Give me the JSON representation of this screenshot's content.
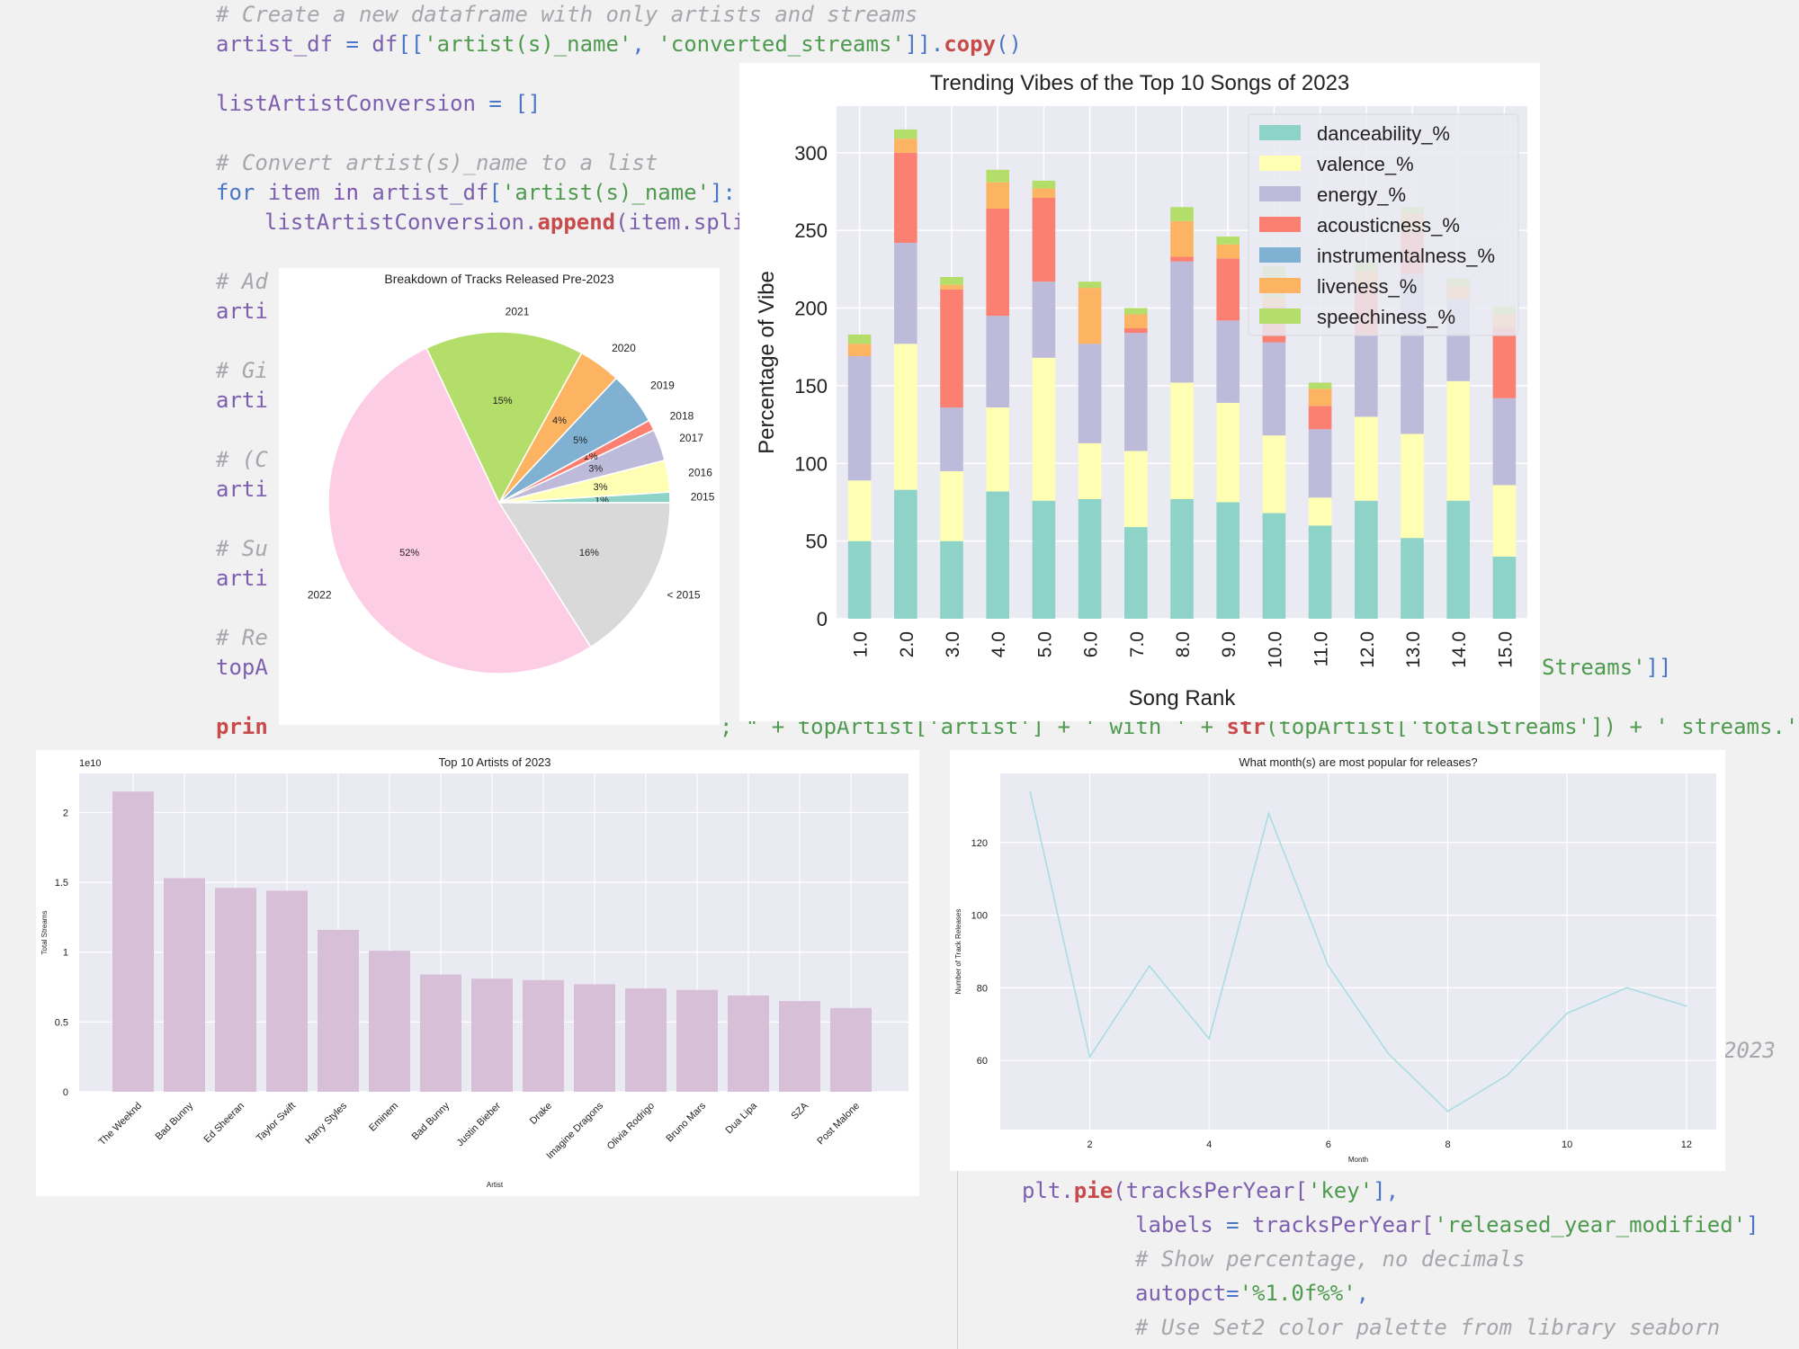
{
  "code": {
    "lines": [
      {
        "x": 240,
        "y": 24,
        "parts": [
          {
            "t": "# Create a new dataframe with only artists and streams",
            "c": "cm"
          }
        ]
      },
      {
        "x": 240,
        "y": 57,
        "parts": [
          {
            "t": "artist_df",
            "c": "vr"
          },
          {
            "t": " = ",
            "c": "op"
          },
          {
            "t": "df",
            "c": "vr"
          },
          {
            "t": "[[",
            "c": "op"
          },
          {
            "t": "'artist(s)_name'",
            "c": "st"
          },
          {
            "t": ", ",
            "c": "op"
          },
          {
            "t": "'converted_streams'",
            "c": "st"
          },
          {
            "t": "]].",
            "c": "op"
          },
          {
            "t": "copy",
            "c": "fn"
          },
          {
            "t": "()",
            "c": "op"
          }
        ]
      },
      {
        "x": 240,
        "y": 123,
        "parts": [
          {
            "t": "listArtistConversion",
            "c": "vr"
          },
          {
            "t": " = []",
            "c": "op"
          }
        ]
      },
      {
        "x": 240,
        "y": 189,
        "parts": [
          {
            "t": "# Convert artist(s)_name to a list",
            "c": "cm"
          }
        ]
      },
      {
        "x": 240,
        "y": 222,
        "parts": [
          {
            "t": "for ",
            "c": "op"
          },
          {
            "t": "item",
            "c": "vr"
          },
          {
            "t": " in ",
            "c": "kw"
          },
          {
            "t": "artist_df",
            "c": "vr"
          },
          {
            "t": "[",
            "c": "op"
          },
          {
            "t": "'artist(s)_name'",
            "c": "st"
          },
          {
            "t": "]:",
            "c": "op"
          }
        ]
      },
      {
        "x": 294,
        "y": 255,
        "parts": [
          {
            "t": "listArtistConversion.",
            "c": "vr"
          },
          {
            "t": "append",
            "c": "fn"
          },
          {
            "t": "(item.split(\"",
            "c": "vr"
          }
        ]
      },
      {
        "x": 240,
        "y": 321,
        "parts": [
          {
            "t": "# Ad",
            "c": "cm"
          }
        ]
      },
      {
        "x": 240,
        "y": 354,
        "parts": [
          {
            "t": "arti",
            "c": "vr"
          }
        ]
      },
      {
        "x": 240,
        "y": 420,
        "parts": [
          {
            "t": "# Gi",
            "c": "cm"
          }
        ]
      },
      {
        "x": 240,
        "y": 453,
        "parts": [
          {
            "t": "arti",
            "c": "vr"
          }
        ]
      },
      {
        "x": 240,
        "y": 519,
        "parts": [
          {
            "t": "# (C",
            "c": "cm"
          }
        ]
      },
      {
        "x": 240,
        "y": 552,
        "parts": [
          {
            "t": "arti",
            "c": "vr"
          }
        ]
      },
      {
        "x": 240,
        "y": 618,
        "parts": [
          {
            "t": "# Su",
            "c": "cm"
          }
        ]
      },
      {
        "x": 240,
        "y": 651,
        "parts": [
          {
            "t": "arti",
            "c": "vr"
          }
        ]
      },
      {
        "x": 240,
        "y": 717,
        "parts": [
          {
            "t": "# Re",
            "c": "cm"
          }
        ]
      },
      {
        "x": 240,
        "y": 750,
        "parts": [
          {
            "t": "topA",
            "c": "vr"
          }
        ]
      },
      {
        "x": 1714,
        "y": 750,
        "parts": [
          {
            "t": "Streams'",
            "c": "st"
          },
          {
            "t": "]]",
            "c": "op"
          }
        ]
      },
      {
        "x": 240,
        "y": 816,
        "parts": [
          {
            "t": "prin",
            "c": "fn"
          }
        ]
      },
      {
        "x": 800,
        "y": 816,
        "parts": [
          {
            "t": "; \" + topArtist['artist'] + ' with ' + ",
            "c": "st"
          },
          {
            "t": "str",
            "c": "fn"
          },
          {
            "t": "(topArtist['totalStreams']) + ' streams.'",
            "c": "st"
          },
          {
            "t": ")",
            "c": "op"
          }
        ]
      },
      {
        "x": 1916,
        "y": 1176,
        "parts": [
          {
            "t": "2023",
            "c": "cm"
          }
        ]
      },
      {
        "x": 1136,
        "y": 1332,
        "parts": [
          {
            "t": "plt.",
            "c": "vr"
          },
          {
            "t": "pie",
            "c": "fn"
          },
          {
            "t": "(tracksPerYear[",
            "c": "vr"
          },
          {
            "t": "'key'",
            "c": "st"
          },
          {
            "t": "],",
            "c": "op"
          }
        ]
      },
      {
        "x": 1262,
        "y": 1370,
        "parts": [
          {
            "t": "labels",
            "c": "vr"
          },
          {
            "t": " = ",
            "c": "op"
          },
          {
            "t": "tracksPerYear[",
            "c": "vr"
          },
          {
            "t": "'released_year_modified'",
            "c": "st"
          },
          {
            "t": "]",
            "c": "op"
          }
        ]
      },
      {
        "x": 1262,
        "y": 1408,
        "parts": [
          {
            "t": "# Show percentage, no decimals",
            "c": "cm"
          }
        ]
      },
      {
        "x": 1262,
        "y": 1446,
        "parts": [
          {
            "t": "autopct",
            "c": "vr"
          },
          {
            "t": "=",
            "c": "op"
          },
          {
            "t": "'%1.0f%%'",
            "c": "st"
          },
          {
            "t": ",",
            "c": "op"
          }
        ]
      },
      {
        "x": 1262,
        "y": 1484,
        "parts": [
          {
            "t": "# Use Set2 color palette from library seaborn",
            "c": "cm"
          }
        ]
      }
    ]
  },
  "chart_data": [
    {
      "id": "pie",
      "type": "pie",
      "title": "Breakdown of Tracks Released Pre-2023",
      "slices": [
        {
          "label": "2015",
          "value": 1,
          "pct": "1%",
          "color": "#8dd3c7"
        },
        {
          "label": "2016",
          "value": 3,
          "pct": "3%",
          "color": "#ffffb3"
        },
        {
          "label": "2017",
          "value": 3,
          "pct": "3%",
          "color": "#bebada"
        },
        {
          "label": "2018",
          "value": 1,
          "pct": "1%",
          "color": "#fb8072"
        },
        {
          "label": "2019",
          "value": 5,
          "pct": "5%",
          "color": "#80b1d3"
        },
        {
          "label": "2020",
          "value": 4,
          "pct": "4%",
          "color": "#fdb462"
        },
        {
          "label": "2021",
          "value": 15,
          "pct": "15%",
          "color": "#b3de69"
        },
        {
          "label": "2022",
          "value": 52,
          "pct": "52%",
          "color": "#fccde5"
        },
        {
          "label": "< 2015",
          "value": 16,
          "pct": "16%",
          "color": "#d9d9d9"
        }
      ]
    },
    {
      "id": "stack",
      "type": "bar",
      "stacked": true,
      "title": "Trending Vibes of the Top 10 Songs of 2023",
      "xlabel": "Song Rank",
      "ylabel": "Percentage of Vibe",
      "categories": [
        "1.0",
        "2.0",
        "3.0",
        "4.0",
        "5.0",
        "6.0",
        "7.0",
        "8.0",
        "9.0",
        "10.0",
        "11.0",
        "12.0",
        "13.0",
        "14.0",
        "15.0"
      ],
      "ylim": [
        0,
        330
      ],
      "yticks": [
        0,
        50,
        100,
        150,
        200,
        250,
        300
      ],
      "legend_position": "upper-right",
      "series": [
        {
          "name": "danceability_%",
          "color": "#8dd3c7",
          "values": [
            50,
            83,
            50,
            82,
            76,
            77,
            59,
            77,
            75,
            68,
            60,
            76,
            52,
            76,
            40
          ]
        },
        {
          "name": "valence_%",
          "color": "#ffffb3",
          "values": [
            39,
            94,
            45,
            54,
            92,
            36,
            49,
            75,
            64,
            50,
            18,
            54,
            67,
            77,
            46
          ]
        },
        {
          "name": "energy_%",
          "color": "#bebada",
          "values": [
            80,
            65,
            41,
            59,
            49,
            64,
            76,
            78,
            53,
            60,
            44,
            53,
            103,
            53,
            56
          ]
        },
        {
          "name": "acousticness_%",
          "color": "#fb8072",
          "values": [
            0,
            58,
            76,
            69,
            54,
            0,
            3,
            3,
            40,
            23,
            15,
            30,
            28,
            0,
            46
          ]
        },
        {
          "name": "instrumentalness_%",
          "color": "#80b1d3",
          "values": [
            0,
            0,
            0,
            0,
            0,
            0,
            0,
            0,
            0,
            0,
            0,
            0,
            0,
            0,
            0
          ]
        },
        {
          "name": "liveness_%",
          "color": "#fdb462",
          "values": [
            8,
            9,
            3,
            17,
            6,
            36,
            9,
            23,
            9,
            6,
            11,
            11,
            11,
            8,
            8
          ]
        },
        {
          "name": "speechiness_%",
          "color": "#b3de69",
          "values": [
            6,
            6,
            5,
            8,
            5,
            4,
            4,
            9,
            5,
            20,
            4,
            5,
            4,
            5,
            5
          ]
        }
      ]
    },
    {
      "id": "artists",
      "type": "bar",
      "title": "Top 10 Artists of 2023",
      "xlabel": "Artist",
      "ylabel": "Total Streams",
      "offset_label": "1e10",
      "categories": [
        "The Weeknd",
        "Bad Bunny",
        "Ed Sheeran",
        "Taylor Swift",
        "Harry Styles",
        "Eminem",
        "Bad Bunny",
        "Justin Bieber",
        "Drake",
        "Imagine Dragons",
        "Olivia Rodrigo",
        "Bruno Mars",
        "Dua Lipa",
        "SZA",
        "Post Malone"
      ],
      "values": [
        2.15,
        1.53,
        1.46,
        1.44,
        1.16,
        1.01,
        0.84,
        0.81,
        0.8,
        0.77,
        0.74,
        0.73,
        0.69,
        0.65,
        0.6
      ],
      "ylim": [
        0,
        2.28
      ],
      "yticks": [
        0.0,
        0.5,
        1.0,
        1.5,
        2.0
      ],
      "color": "#d8bfd8"
    },
    {
      "id": "months",
      "type": "line",
      "title": "What month(s) are most popular for releases?",
      "xlabel": "Month",
      "ylabel": "Number of Track Releases",
      "x": [
        1,
        2,
        3,
        4,
        5,
        6,
        7,
        8,
        9,
        10,
        11,
        12
      ],
      "y": [
        134,
        61,
        86,
        66,
        128,
        86,
        62,
        46,
        56,
        73,
        80,
        75
      ],
      "xlim": [
        0.5,
        12.5
      ],
      "ylim": [
        41,
        139
      ],
      "xticks": [
        2,
        4,
        6,
        8,
        10,
        12
      ],
      "yticks": [
        60,
        80,
        100,
        120
      ],
      "color": "#a8dde4"
    }
  ]
}
